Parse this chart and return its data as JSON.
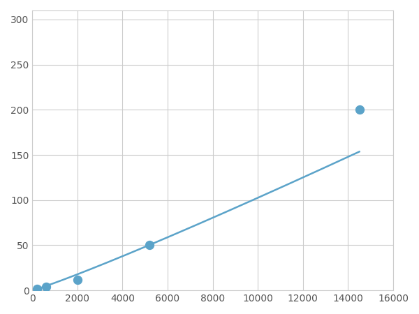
{
  "x_points": [
    200,
    600,
    2000,
    5200,
    14500
  ],
  "y_points": [
    2,
    4,
    12,
    50,
    200
  ],
  "xlim": [
    0,
    16000
  ],
  "ylim": [
    0,
    310
  ],
  "xticks": [
    0,
    2000,
    4000,
    6000,
    8000,
    10000,
    12000,
    14000,
    16000
  ],
  "yticks": [
    0,
    50,
    100,
    150,
    200,
    250,
    300
  ],
  "line_color": "#5ba3c9",
  "marker_color": "#5ba3c9",
  "marker_size": 7,
  "line_width": 1.8,
  "background_color": "#ffffff",
  "grid_color": "#cccccc",
  "tick_label_color": "#555555",
  "tick_fontsize": 10
}
